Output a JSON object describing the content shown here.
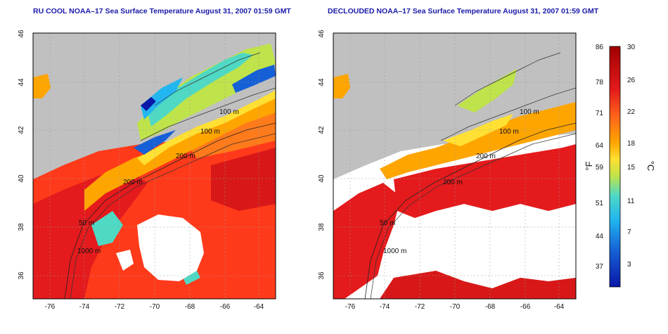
{
  "titles": {
    "left": "RU COOL NOAA–17 Sea Surface Temperature August 31, 2007 01:59 GMT",
    "right": "DECLOUDED NOAA–17 Sea Surface Temperature August 31, 2007 01:59 GMT"
  },
  "axes": {
    "lon_ticks": [
      "-76",
      "-74",
      "-72",
      "-70",
      "-68",
      "-66",
      "-64"
    ],
    "lat_ticks": [
      "46",
      "44",
      "42",
      "40",
      "38",
      "36"
    ]
  },
  "contours": {
    "left": [
      "100 m",
      "100 m",
      "200 m",
      "200 m",
      "50 m",
      "1000 m"
    ],
    "right": [
      "100 m",
      "100 m",
      "200 m",
      "200 m",
      "50 m",
      "1000 m"
    ]
  },
  "colorbar": {
    "fahrenheit_ticks": [
      "86",
      "78",
      "71",
      "64",
      "59",
      "51",
      "44",
      "37"
    ],
    "celsius_ticks": [
      "30",
      "26",
      "22",
      "18",
      "15",
      "11",
      "7",
      "3"
    ],
    "unit_f": "°F",
    "unit_c": "°C",
    "colors": [
      "#b30000",
      "#e41a1c",
      "#ff6a1a",
      "#ffa500",
      "#ffe033",
      "#bfe34a",
      "#4fd9c4",
      "#22b6f0",
      "#1560d6",
      "#0a17a8"
    ]
  },
  "palette": {
    "land": "#c0c0c0",
    "cloud": "#ffffff",
    "title_color": "#1a1aa8"
  }
}
